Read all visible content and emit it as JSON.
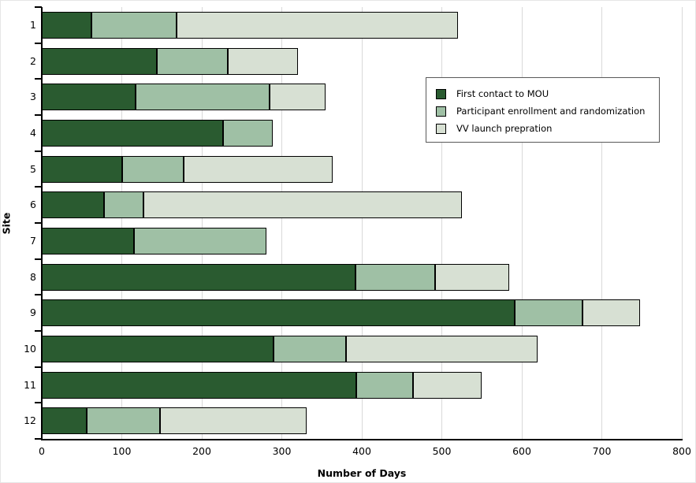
{
  "chart_data": {
    "type": "bar",
    "orientation": "horizontal",
    "stacked": true,
    "title": "",
    "xlabel": "Number of Days",
    "ylabel": "Site",
    "xlim": [
      0,
      800
    ],
    "xticks": [
      0,
      100,
      200,
      300,
      400,
      500,
      600,
      700,
      800
    ],
    "grid": "vertical-gridlines-at-100",
    "legend_position": "inside-upper-right",
    "categories": [
      "1",
      "2",
      "3",
      "4",
      "5",
      "6",
      "7",
      "8",
      "9",
      "10",
      "11",
      "12"
    ],
    "series": [
      {
        "name": "First contact to MOU",
        "color": "#2a5b30",
        "values": [
          62,
          144,
          117,
          227,
          100,
          78,
          115,
          392,
          591,
          290,
          393,
          56
        ]
      },
      {
        "name": "Participant enrollment and randomization",
        "color": "#9fc0a5",
        "values": [
          106,
          89,
          168,
          62,
          77,
          49,
          166,
          100,
          85,
          90,
          71,
          92
        ]
      },
      {
        "name": "VV launch prepration",
        "color": "#d7e0d3",
        "values": [
          352,
          87,
          70,
          0,
          187,
          398,
          0,
          92,
          72,
          240,
          86,
          183
        ]
      }
    ],
    "totals": [
      520,
      320,
      355,
      289,
      364,
      525,
      281,
      584,
      748,
      620,
      550,
      331
    ]
  },
  "styles": {
    "background": "#ffffff",
    "gridline_color": "#d9d9d9",
    "axis_color": "#000000",
    "bar_border_color": "#000000",
    "legend_border_color": "#595959",
    "text_color": "#000000"
  }
}
